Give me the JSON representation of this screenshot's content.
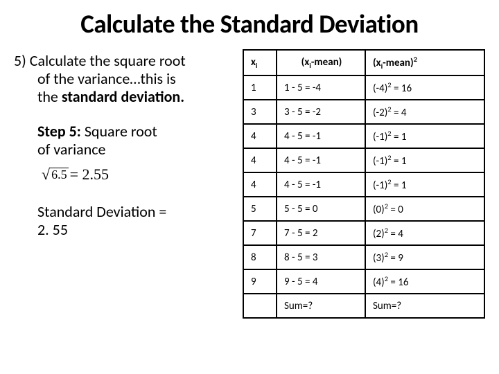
{
  "title": "Calculate the Standard Deviation",
  "left": {
    "para1_line1": "5) Calculate the square root",
    "para1_line2": "of the variance…this is",
    "para1_line3_pre": "the ",
    "para1_line3_bold": "standard deviation.",
    "step5_bold": "Step 5:",
    "step5_rest1": " Square root",
    "step5_rest2": "of variance",
    "sqrt_arg": "6.5",
    "sqrt_eq": " = 2.55",
    "result_line1": "Standard Deviation =",
    "result_line2": "2. 55"
  },
  "table": {
    "headers": {
      "h1_pre": "x",
      "h1_sub": "i",
      "h2_pre": "(x",
      "h2_sub": "i",
      "h2_post": "-mean)",
      "h3_pre": "(x",
      "h3_sub": "i",
      "h3_post": "-mean)",
      "h3_sup": "2"
    },
    "rows": [
      {
        "xi": "1",
        "diff": "1 - 5 = -4",
        "sq_pre": "(-4)",
        "sq_sup": "2",
        "sq_post": " = 16"
      },
      {
        "xi": "3",
        "diff": "3 - 5 = -2",
        "sq_pre": "(-2)",
        "sq_sup": "2",
        "sq_post": " = 4"
      },
      {
        "xi": "4",
        "diff": "4 - 5 = -1",
        "sq_pre": "(-1)",
        "sq_sup": "2",
        "sq_post": " = 1"
      },
      {
        "xi": "4",
        "diff": "4 - 5 = -1",
        "sq_pre": "(-1)",
        "sq_sup": "2",
        "sq_post": " = 1"
      },
      {
        "xi": "4",
        "diff": "4 - 5 = -1",
        "sq_pre": "(-1)",
        "sq_sup": "2",
        "sq_post": " = 1"
      },
      {
        "xi": "5",
        "diff": "5 - 5 = 0",
        "sq_pre": "(0)",
        "sq_sup": "2",
        "sq_post": " = 0"
      },
      {
        "xi": "7",
        "diff": "7 - 5 = 2",
        "sq_pre": "(2)",
        "sq_sup": "2",
        "sq_post": " = 4"
      },
      {
        "xi": "8",
        "diff": "8 - 5 = 3",
        "sq_pre": "(3)",
        "sq_sup": "2",
        "sq_post": " = 9"
      },
      {
        "xi": "9",
        "diff": "9 - 5 = 4",
        "sq_pre": "(4)",
        "sq_sup": "2",
        "sq_post": " = 16"
      }
    ],
    "footer": {
      "c1": "",
      "c2": "Sum=?",
      "c3": "Sum=?"
    }
  }
}
